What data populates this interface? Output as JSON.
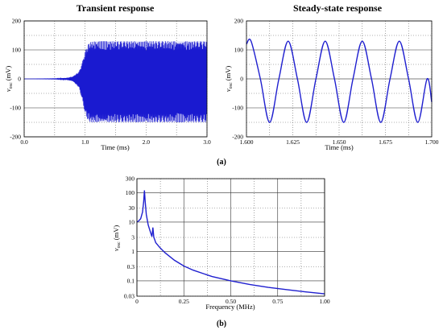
{
  "chart_data": [
    {
      "id": "transient",
      "type": "line",
      "title": "Transient response",
      "xlabel": "Time (ms)",
      "ylabel": "v",
      "ylabel_sub": "osc",
      "ylabel_unit": " (mV)",
      "xlim": [
        0,
        3
      ],
      "ylim": [
        -200,
        200
      ],
      "xticks": [
        "0.0",
        "1.0",
        "2.0",
        "3.0"
      ],
      "yticks": [
        "200",
        "100",
        "0",
        "-100",
        "-200"
      ],
      "x": [
        0,
        0.5,
        0.7,
        0.8,
        0.9,
        0.95,
        1.0,
        1.05,
        1.1,
        1.2,
        1.5,
        2.0,
        2.5,
        3.0
      ],
      "upper": [
        0,
        1,
        3,
        8,
        25,
        55,
        95,
        120,
        128,
        130,
        130,
        130,
        130,
        130
      ],
      "lower": [
        0,
        -1,
        -3,
        -8,
        -30,
        -70,
        -120,
        -145,
        -150,
        -150,
        -150,
        -150,
        -150,
        -150
      ],
      "color": "#1f1fcf"
    },
    {
      "id": "steady",
      "type": "line",
      "title": "Steady-state response",
      "xlabel": "Time (ms)",
      "ylabel": "v",
      "ylabel_sub": "osc",
      "ylabel_unit": " (mV)",
      "xlim": [
        1.6,
        1.7
      ],
      "ylim": [
        -200,
        200
      ],
      "xticks": [
        "1.600",
        "1.625",
        "1.650",
        "1.675",
        "1.700"
      ],
      "yticks": [
        "200",
        "100",
        "0",
        "-100",
        "-200"
      ],
      "x": [
        1.6,
        1.6025,
        1.6075,
        1.6125,
        1.6175,
        1.6225,
        1.6275,
        1.6325,
        1.6375,
        1.6425,
        1.6475,
        1.6525,
        1.6575,
        1.6625,
        1.6675,
        1.6725,
        1.6775,
        1.6825,
        1.6875,
        1.6925,
        1.6975,
        1.7
      ],
      "y": [
        120,
        130,
        0,
        -150,
        0,
        130,
        0,
        -150,
        0,
        130,
        0,
        -150,
        0,
        130,
        0,
        -150,
        0,
        130,
        0,
        -150,
        0,
        -80
      ],
      "color": "#1f1fcf"
    },
    {
      "id": "spectrum",
      "type": "line",
      "scale_y": "log",
      "title": "",
      "xlabel": "Frequency (MHz)",
      "ylabel": "v",
      "ylabel_sub": "osc",
      "ylabel_unit": " (mV)",
      "xlim": [
        0,
        1
      ],
      "ylim": [
        0.03,
        300
      ],
      "xticks": [
        "0",
        "0.25",
        "0.50",
        "0.75",
        "1.00"
      ],
      "yticks": [
        "300",
        "100",
        "30",
        "10",
        "3",
        "1",
        "0.3",
        "0.1",
        "0.03"
      ],
      "x": [
        0.0,
        0.01,
        0.02,
        0.03,
        0.036,
        0.04,
        0.044,
        0.05,
        0.06,
        0.07,
        0.08,
        0.085,
        0.09,
        0.095,
        0.1,
        0.12,
        0.15,
        0.2,
        0.25,
        0.3,
        0.4,
        0.5,
        0.6,
        0.7,
        0.8,
        0.9,
        1.0
      ],
      "y": [
        10,
        11,
        13,
        22,
        50,
        120,
        50,
        18,
        8,
        5,
        3.2,
        6.5,
        3,
        2.5,
        2,
        1.4,
        0.9,
        0.5,
        0.32,
        0.23,
        0.14,
        0.1,
        0.075,
        0.06,
        0.05,
        0.042,
        0.036
      ],
      "color": "#1f1fcf"
    }
  ],
  "captions": {
    "a": "(a)",
    "b": "(b)"
  }
}
